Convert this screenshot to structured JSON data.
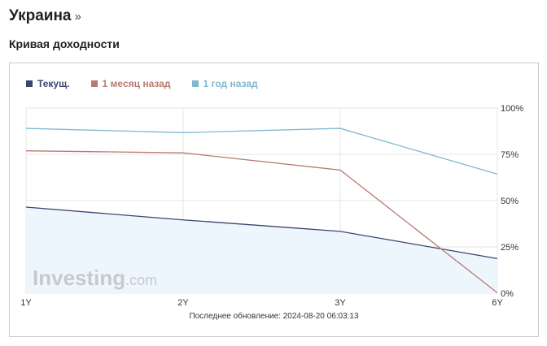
{
  "page": {
    "country": "Украина",
    "country_suffix": "»",
    "subtitle": "Кривая доходности"
  },
  "footnote": "Последнее обновление: 2024-08-20 06:03:13",
  "watermark": {
    "text_bold": "Investing",
    "text_light": ".com"
  },
  "colors": {
    "current": "#3d4470",
    "month_ago": "#b87a72",
    "year_ago": "#7fb9d0",
    "area_fill": "#eef6fd",
    "grid": "#e6e6e6"
  },
  "chart_data": {
    "type": "line",
    "categories": [
      "1Y",
      "2Y",
      "3Y",
      "6Y"
    ],
    "series": [
      {
        "name": "Текущ.",
        "values": [
          46.5,
          39.6,
          33.4,
          18.7
        ],
        "color": "#3d4470",
        "filled": true
      },
      {
        "name": "1 месяц назад",
        "values": [
          76.9,
          75.8,
          66.5,
          0.2
        ],
        "color": "#b87a72",
        "filled": false
      },
      {
        "name": "1 год назад",
        "values": [
          89.0,
          86.7,
          89.0,
          64.3
        ],
        "color": "#7fb9d0",
        "filled": false
      }
    ],
    "ylim": [
      0,
      100
    ],
    "y_ticks": [
      0,
      25,
      50,
      75,
      100
    ],
    "y_tick_labels": [
      "0%",
      "25%",
      "50%",
      "75%",
      "100%"
    ],
    "y_axis_side": "right",
    "grid": true,
    "legend_position": "top-left"
  }
}
